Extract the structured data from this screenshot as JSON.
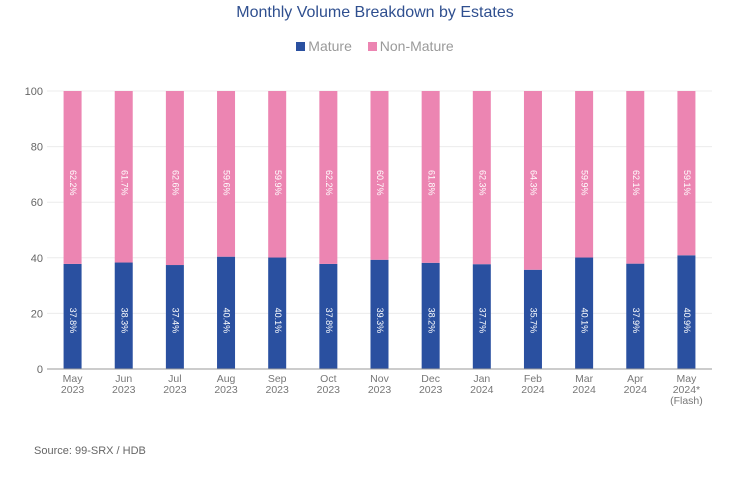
{
  "chart_data": {
    "type": "bar",
    "stacked": true,
    "title": "Monthly Volume Breakdown by Estates",
    "categories": [
      [
        "May",
        "2023"
      ],
      [
        "Jun",
        "2023"
      ],
      [
        "Jul",
        "2023"
      ],
      [
        "Aug",
        "2023"
      ],
      [
        "Sep",
        "2023"
      ],
      [
        "Oct",
        "2023"
      ],
      [
        "Nov",
        "2023"
      ],
      [
        "Dec",
        "2023"
      ],
      [
        "Jan",
        "2024"
      ],
      [
        "Feb",
        "2024"
      ],
      [
        "Mar",
        "2024"
      ],
      [
        "Apr",
        "2024"
      ],
      [
        "May",
        "2024*",
        "(Flash)"
      ]
    ],
    "series": [
      {
        "name": "Mature",
        "color": "#2a50a0",
        "values": [
          37.8,
          38.3,
          37.4,
          40.4,
          40.1,
          37.8,
          39.3,
          38.2,
          37.7,
          35.7,
          40.1,
          37.9,
          40.9
        ]
      },
      {
        "name": "Non-Mature",
        "color": "#ec85b2",
        "values": [
          62.2,
          61.7,
          62.6,
          59.6,
          59.9,
          62.2,
          60.7,
          61.8,
          62.3,
          64.3,
          59.9,
          62.1,
          59.1
        ]
      }
    ],
    "ylim": [
      0,
      100
    ],
    "yticks": [
      0,
      20,
      40,
      60,
      80,
      100
    ],
    "grid": true,
    "legend": "top",
    "data_label_suffix": "%"
  },
  "source": "Source: 99-SRX / HDB"
}
